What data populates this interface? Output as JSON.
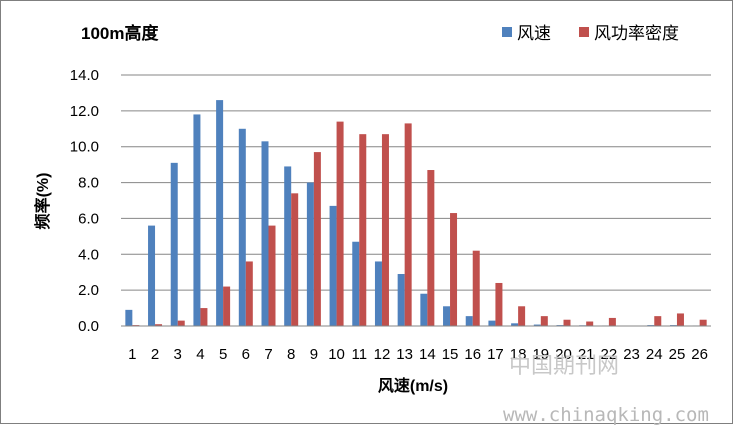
{
  "chart_data": {
    "type": "bar",
    "title": "100m高度",
    "xlabel": "风速(m/s)",
    "ylabel": "频率(%)",
    "ylim": [
      0,
      14
    ],
    "yticks": [
      "0.0",
      "2.0",
      "4.0",
      "6.0",
      "8.0",
      "10.0",
      "12.0",
      "14.0"
    ],
    "grid": true,
    "legend_position": "top-right",
    "categories": [
      "1",
      "2",
      "3",
      "4",
      "5",
      "6",
      "7",
      "8",
      "9",
      "10",
      "11",
      "12",
      "13",
      "14",
      "15",
      "16",
      "17",
      "18",
      "19",
      "20",
      "21",
      "22",
      "23",
      "24",
      "25",
      "26"
    ],
    "series": [
      {
        "name": "风速",
        "color": "#4f81bd",
        "values": [
          0.9,
          5.6,
          9.1,
          11.8,
          12.6,
          11.0,
          10.3,
          8.9,
          8.0,
          6.7,
          4.7,
          3.6,
          2.9,
          1.8,
          1.1,
          0.55,
          0.3,
          0.15,
          0.08,
          0.05,
          0.04,
          0.03,
          0.02,
          0.05,
          0.05,
          0.03
        ]
      },
      {
        "name": "风功率密度",
        "color": "#c0504d",
        "values": [
          0.05,
          0.1,
          0.3,
          1.0,
          2.2,
          3.6,
          5.6,
          7.4,
          9.7,
          11.4,
          10.7,
          10.7,
          11.3,
          8.7,
          6.3,
          4.2,
          2.4,
          1.1,
          0.55,
          0.35,
          0.25,
          0.45,
          0.02,
          0.55,
          0.7,
          0.35
        ]
      }
    ]
  },
  "watermark": {
    "cn": "中国期刊网",
    "url": "www.chinaqking.com"
  }
}
